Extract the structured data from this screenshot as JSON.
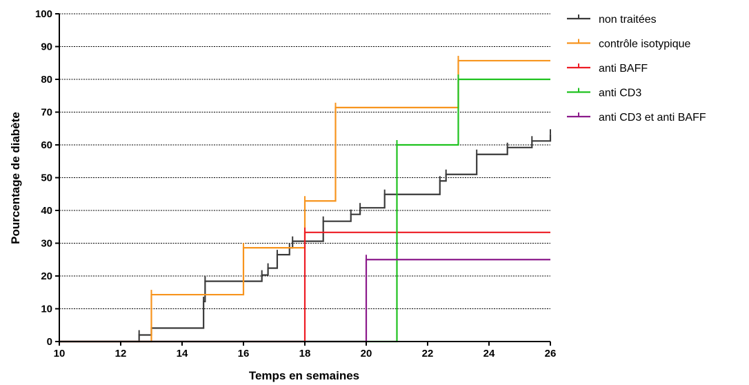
{
  "chart_data": {
    "type": "line",
    "step": true,
    "title": "",
    "xlabel": "Temps en semaines",
    "ylabel": "Pourcentage de diabète",
    "xlim": [
      10,
      26
    ],
    "ylim": [
      0,
      100
    ],
    "xticks": [
      10,
      12,
      14,
      16,
      18,
      20,
      22,
      24,
      26
    ],
    "yticks": [
      0,
      10,
      20,
      30,
      40,
      50,
      60,
      70,
      80,
      90,
      100
    ],
    "grid": "horizontal dotted",
    "legend_position": "top-right, outside",
    "series": [
      {
        "name": "non traitées",
        "color": "#3a3a3a",
        "x": [
          10,
          12.6,
          13,
          14.7,
          14.75,
          16.6,
          16.8,
          17.1,
          17.5,
          17.6,
          18.6,
          19.5,
          19.8,
          20.6,
          22.4,
          22.6,
          23.6,
          24.6,
          25.4,
          26
        ],
        "y": [
          0,
          2,
          4.1,
          12.2,
          18.4,
          20.3,
          22.4,
          26.5,
          28.6,
          30.6,
          36.7,
          38.8,
          40.8,
          44.9,
          49,
          51,
          57.1,
          59.2,
          61.2,
          63.3
        ]
      },
      {
        "name": "contrôle isotypique",
        "color": "#f7941d",
        "x": [
          10,
          13,
          16,
          18,
          19,
          23,
          26
        ],
        "y": [
          0,
          14.3,
          28.6,
          42.9,
          71.4,
          85.7,
          85.7
        ]
      },
      {
        "name": "anti BAFF",
        "color": "#ed1c24",
        "x": [
          10,
          18,
          26
        ],
        "y": [
          0,
          33.3,
          33.3
        ]
      },
      {
        "name": "anti CD3",
        "color": "#1fc21f",
        "x": [
          10,
          21,
          23,
          26
        ],
        "y": [
          0,
          60,
          80,
          80
        ]
      },
      {
        "name": "anti CD3 et anti BAFF",
        "color": "#8b1a8b",
        "x": [
          10,
          20,
          26
        ],
        "y": [
          0,
          25,
          25
        ]
      }
    ]
  }
}
